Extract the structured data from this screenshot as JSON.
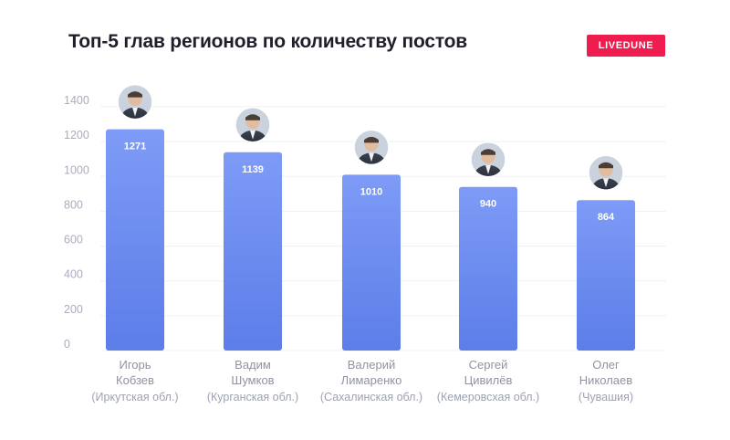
{
  "title": "Топ-5 глав регионов по количеству постов",
  "brand": "LIVEDUNE",
  "colors": {
    "bar_top": "#7d9bf6",
    "bar_bottom": "#5d7de9",
    "brand": "#ef1c4f"
  },
  "chart_data": {
    "type": "bar",
    "title": "Топ-5 глав регионов по количеству постов",
    "xlabel": "",
    "ylabel": "",
    "ylim": [
      0,
      1400
    ],
    "yticks": [
      0,
      200,
      400,
      600,
      800,
      1000,
      1200,
      1400
    ],
    "grid": true,
    "categories": [
      {
        "first": "Игорь",
        "last": "Кобзев",
        "region": "(Иркутская обл.)"
      },
      {
        "first": "Вадим",
        "last": "Шумков",
        "region": "(Курганская обл.)"
      },
      {
        "first": "Валерий",
        "last": "Лимаренко",
        "region": "(Сахалинская обл.)"
      },
      {
        "first": "Сергей",
        "last": "Цивилёв",
        "region": "(Кемеровсхая обл.)"
      },
      {
        "first": "Олег",
        "last": "Николаев",
        "region": "(Чувашия)"
      }
    ],
    "values": [
      1271,
      1139,
      1010,
      940,
      864
    ],
    "annotations": "Avatar photo above each bar"
  }
}
